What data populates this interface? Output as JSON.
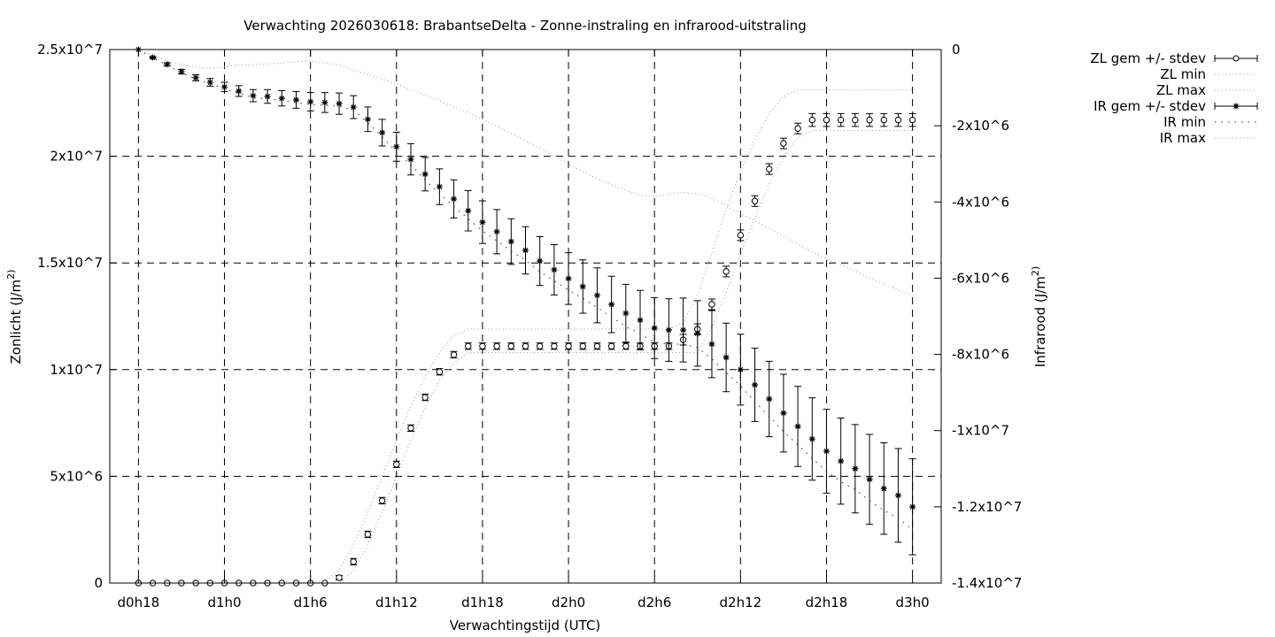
{
  "chart_data": {
    "type": "line",
    "title": "Verwachting 2026030618: BrabantseDelta - Zonne-instraling en infrarood-uitstraling",
    "xlabel": "Verwachtingstijd (UTC)",
    "ylabel": "Zonlicht (J/m^2)",
    "y2label": "Infrarood (J/m^2)",
    "xlim": [
      16,
      74
    ],
    "ylim": [
      0,
      25000000
    ],
    "y2lim": [
      -14000000,
      0
    ],
    "grid": true,
    "legend_position": "outside-top-right",
    "value_multiplier": 1000000,
    "x_ticks": [
      {
        "value": 18,
        "label": "d0h18"
      },
      {
        "value": 24,
        "label": "d1h0"
      },
      {
        "value": 30,
        "label": "d1h6"
      },
      {
        "value": 36,
        "label": "d1h12"
      },
      {
        "value": 42,
        "label": "d1h18"
      },
      {
        "value": 48,
        "label": "d2h0"
      },
      {
        "value": 54,
        "label": "d2h6"
      },
      {
        "value": 60,
        "label": "d2h12"
      },
      {
        "value": 66,
        "label": "d2h18"
      },
      {
        "value": 72,
        "label": "d3h0"
      }
    ],
    "y_ticks": [
      {
        "value": 0,
        "label": "0"
      },
      {
        "value": 5000000,
        "label": "5x10^6"
      },
      {
        "value": 10000000,
        "label": "1x10^7"
      },
      {
        "value": 15000000,
        "label": "1.5x10^7"
      },
      {
        "value": 20000000,
        "label": "2x10^7"
      },
      {
        "value": 25000000,
        "label": "2.5x10^7"
      }
    ],
    "y2_ticks": [
      {
        "value": 0,
        "label": "0"
      },
      {
        "value": -2000000,
        "label": "-2x10^6"
      },
      {
        "value": -4000000,
        "label": "-4x10^6"
      },
      {
        "value": -6000000,
        "label": "-6x10^6"
      },
      {
        "value": -8000000,
        "label": "-8x10^6"
      },
      {
        "value": -10000000,
        "label": "-1x10^7"
      },
      {
        "value": -12000000,
        "label": "-1.2x10^7"
      },
      {
        "value": -14000000,
        "label": "-1.4x10^7"
      }
    ],
    "x_start": 18,
    "x_step": 1,
    "series": [
      {
        "name": "ZL gem +/- stdev",
        "axis": "y",
        "style": "errorbar-circle",
        "values": [
          0,
          0,
          0,
          0,
          0,
          0,
          0,
          0,
          0,
          0,
          0,
          0,
          0,
          0,
          0.25,
          1.0,
          2.28,
          3.86,
          5.56,
          7.26,
          8.7,
          9.9,
          10.7,
          11.1,
          11.1,
          11.1,
          11.1,
          11.1,
          11.1,
          11.1,
          11.1,
          11.1,
          11.1,
          11.1,
          11.1,
          11.1,
          11.1,
          11.1,
          11.4,
          11.9,
          13.06,
          14.6,
          16.3,
          17.9,
          19.4,
          20.6,
          21.3,
          21.7,
          21.7,
          21.7,
          21.7,
          21.7,
          21.7,
          21.7,
          21.7
        ],
        "stdev": [
          0,
          0,
          0,
          0,
          0,
          0,
          0,
          0,
          0,
          0,
          0,
          0,
          0,
          0,
          0.1,
          0.15,
          0.15,
          0.15,
          0.15,
          0.15,
          0.15,
          0.15,
          0.15,
          0.15,
          0.15,
          0.15,
          0.15,
          0.15,
          0.15,
          0.15,
          0.15,
          0.15,
          0.15,
          0.15,
          0.15,
          0.15,
          0.15,
          0.15,
          0.25,
          0.25,
          0.25,
          0.25,
          0.25,
          0.25,
          0.25,
          0.25,
          0.25,
          0.3,
          0.3,
          0.3,
          0.3,
          0.3,
          0.3,
          0.3,
          0.3
        ]
      },
      {
        "name": "ZL min",
        "axis": "y",
        "style": "dotted-gray",
        "values": [
          0,
          0,
          0,
          0,
          0,
          0,
          0,
          0,
          0,
          0,
          0,
          0,
          0,
          0,
          0,
          0.6,
          1.8,
          3.3,
          5.0,
          6.7,
          8.2,
          9.5,
          10.3,
          10.8,
          10.8,
          10.8,
          10.8,
          10.8,
          10.8,
          10.8,
          10.8,
          10.8,
          10.8,
          10.8,
          10.8,
          10.8,
          10.8,
          10.8,
          10.8,
          10.8,
          12.0,
          13.6,
          15.4,
          17.1,
          18.7,
          20.0,
          20.9,
          21.2,
          21.2,
          21.2,
          21.2,
          21.2,
          21.2,
          21.2,
          21.2
        ]
      },
      {
        "name": "ZL max",
        "axis": "y",
        "style": "dotted-gray",
        "values": [
          0,
          0,
          0,
          0,
          0,
          0,
          0,
          0,
          0,
          0,
          0,
          0,
          0,
          0.1,
          0.6,
          1.8,
          3.3,
          5.0,
          6.7,
          8.3,
          9.7,
          10.8,
          11.6,
          11.9,
          11.9,
          11.9,
          11.9,
          11.9,
          11.9,
          11.9,
          11.9,
          11.9,
          11.9,
          11.9,
          11.9,
          11.9,
          11.9,
          11.9,
          12.2,
          13.5,
          15.5,
          17.5,
          19.3,
          20.8,
          22.0,
          22.8,
          23.1,
          23.1,
          23.1,
          23.1,
          23.1,
          23.1,
          23.1,
          23.1,
          23.1
        ]
      },
      {
        "name": "IR gem +/- stdev",
        "axis": "y2",
        "style": "errorbar-star",
        "values": [
          0,
          -0.21,
          -0.39,
          -0.58,
          -0.74,
          -0.86,
          -0.98,
          -1.09,
          -1.21,
          -1.23,
          -1.28,
          -1.32,
          -1.37,
          -1.39,
          -1.42,
          -1.51,
          -1.83,
          -2.18,
          -2.55,
          -2.88,
          -3.27,
          -3.6,
          -3.92,
          -4.23,
          -4.53,
          -4.78,
          -5.04,
          -5.27,
          -5.55,
          -5.78,
          -6.01,
          -6.22,
          -6.45,
          -6.69,
          -6.92,
          -7.1,
          -7.31,
          -7.36,
          -7.36,
          -7.45,
          -7.73,
          -8.08,
          -8.4,
          -8.8,
          -9.17,
          -9.54,
          -9.89,
          -10.22,
          -10.54,
          -10.8,
          -11.0,
          -11.28,
          -11.52,
          -11.7,
          -12.0
        ],
        "stdev": [
          0,
          0.02,
          0.04,
          0.06,
          0.08,
          0.1,
          0.12,
          0.14,
          0.16,
          0.18,
          0.2,
          0.22,
          0.24,
          0.26,
          0.28,
          0.3,
          0.32,
          0.35,
          0.38,
          0.41,
          0.44,
          0.47,
          0.5,
          0.53,
          0.56,
          0.58,
          0.6,
          0.62,
          0.64,
          0.66,
          0.68,
          0.7,
          0.72,
          0.74,
          0.76,
          0.78,
          0.8,
          0.82,
          0.84,
          0.86,
          0.88,
          0.9,
          0.93,
          0.96,
          0.99,
          1.02,
          1.05,
          1.08,
          1.1,
          1.13,
          1.16,
          1.18,
          1.2,
          1.23,
          1.26
        ]
      },
      {
        "name": "IR min",
        "axis": "y2",
        "style": "dotted-dark",
        "values": [
          0,
          -0.22,
          -0.41,
          -0.61,
          -0.78,
          -0.9,
          -1.03,
          -1.14,
          -1.27,
          -1.29,
          -1.34,
          -1.39,
          -1.44,
          -1.46,
          -1.49,
          -1.59,
          -1.92,
          -2.29,
          -2.68,
          -3.02,
          -3.43,
          -3.78,
          -4.12,
          -4.44,
          -4.76,
          -5.02,
          -5.29,
          -5.53,
          -5.83,
          -6.07,
          -6.31,
          -6.53,
          -6.77,
          -7.02,
          -7.27,
          -7.46,
          -7.68,
          -7.73,
          -7.73,
          -7.82,
          -8.12,
          -8.48,
          -8.82,
          -9.24,
          -9.63,
          -10.02,
          -10.38,
          -10.73,
          -11.07,
          -11.34,
          -11.55,
          -11.84,
          -12.1,
          -12.29,
          -12.6
        ]
      },
      {
        "name": "IR max",
        "axis": "y2",
        "style": "dotted-gray",
        "values": [
          0,
          -0.15,
          -0.3,
          -0.4,
          -0.45,
          -0.5,
          -0.45,
          -0.4,
          -0.4,
          -0.38,
          -0.35,
          -0.32,
          -0.3,
          -0.35,
          -0.4,
          -0.55,
          -0.65,
          -0.78,
          -0.9,
          -1.05,
          -1.2,
          -1.35,
          -1.5,
          -1.65,
          -1.83,
          -2.0,
          -2.2,
          -2.4,
          -2.6,
          -2.8,
          -3.0,
          -3.2,
          -3.4,
          -3.55,
          -3.7,
          -3.82,
          -3.85,
          -3.8,
          -3.75,
          -3.78,
          -3.9,
          -4.1,
          -4.3,
          -4.5,
          -4.7,
          -4.9,
          -5.1,
          -5.3,
          -5.5,
          -5.65,
          -5.8,
          -6.0,
          -6.15,
          -6.3,
          -6.45
        ]
      }
    ]
  }
}
